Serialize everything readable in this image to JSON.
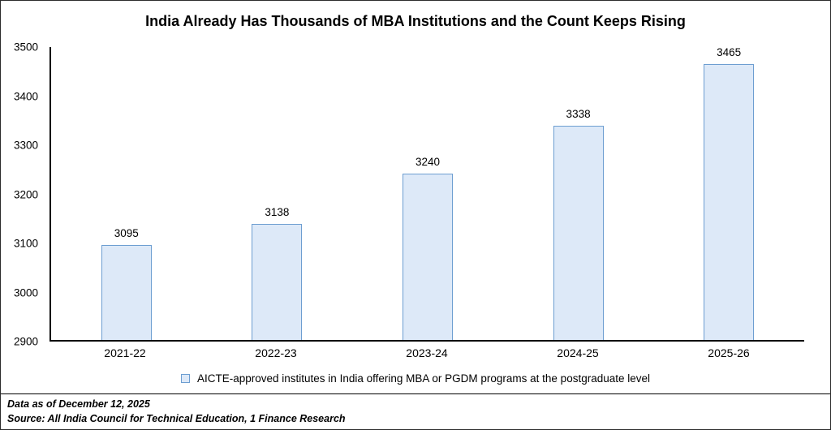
{
  "title": "India Already Has Thousands of MBA Institutions and the Count Keeps Rising",
  "chart_data": {
    "type": "bar",
    "categories": [
      "2021-22",
      "2022-23",
      "2023-24",
      "2024-25",
      "2025-26"
    ],
    "values": [
      3095,
      3138,
      3240,
      3338,
      3465
    ],
    "title": "India Already Has Thousands of MBA Institutions and the Count Keeps Rising",
    "xlabel": "",
    "ylabel": "",
    "ylim": [
      2900,
      3500
    ],
    "ytick_step": 100,
    "grid": false,
    "legend_position": "bottom",
    "legend_label": "AICTE-approved institutes in India offering MBA or PGDM programs at the postgraduate level",
    "bar_fill": "#dde9f8",
    "bar_border": "#6d9ed1",
    "axis_color": "#000000"
  },
  "footer": {
    "line1": "Data as of December 12, 2025",
    "line2": "Source: All India Council for Technical Education, 1 Finance Research"
  }
}
